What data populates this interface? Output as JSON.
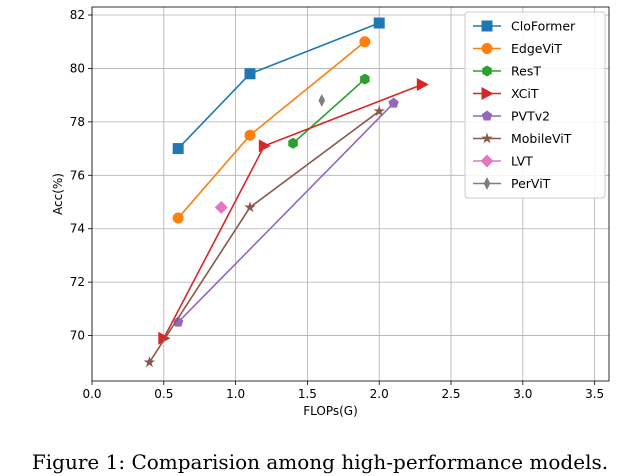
{
  "chart_data": {
    "type": "line",
    "xlabel": "FLOPs(G)",
    "ylabel": "Acc(%)",
    "xlim": [
      0,
      3.6
    ],
    "ylim": [
      68.3,
      82.3
    ],
    "xticks": [
      0.0,
      0.5,
      1.0,
      1.5,
      2.0,
      2.5,
      3.0,
      3.5
    ],
    "xtick_labels": [
      "0.0",
      "0.5",
      "1.0",
      "1.5",
      "2.0",
      "2.5",
      "3.0",
      "3.5"
    ],
    "yticks": [
      70,
      72,
      74,
      76,
      78,
      80,
      82
    ],
    "ytick_labels": [
      "70",
      "72",
      "74",
      "76",
      "78",
      "80",
      "82"
    ],
    "grid": true,
    "legend_position": "top-right",
    "series": [
      {
        "name": "CloFormer",
        "color": "#1f77b4",
        "marker": "square",
        "x": [
          0.6,
          1.1,
          2.0
        ],
        "y": [
          77.0,
          79.8,
          81.7
        ]
      },
      {
        "name": "EdgeViT",
        "color": "#ff7f0e",
        "marker": "circle",
        "x": [
          0.6,
          1.1,
          1.9
        ],
        "y": [
          74.4,
          77.5,
          81.0
        ]
      },
      {
        "name": "ResT",
        "color": "#2ca02c",
        "marker": "hexagon",
        "x": [
          1.4,
          1.9
        ],
        "y": [
          77.2,
          79.6
        ]
      },
      {
        "name": "XCiT",
        "color": "#d62728",
        "marker": "triangle-right",
        "x": [
          0.5,
          1.2,
          2.3
        ],
        "y": [
          69.9,
          77.1,
          79.4
        ]
      },
      {
        "name": "PVTv2",
        "color": "#9467bd",
        "marker": "pentagon",
        "x": [
          0.6,
          2.1
        ],
        "y": [
          70.5,
          78.7
        ]
      },
      {
        "name": "MobileViT",
        "color": "#8c564b",
        "marker": "star",
        "x": [
          0.4,
          1.1,
          2.0
        ],
        "y": [
          69.0,
          74.8,
          78.4
        ]
      },
      {
        "name": "LVT",
        "color": "#e377c2",
        "marker": "diamond",
        "x": [
          0.9
        ],
        "y": [
          74.8
        ]
      },
      {
        "name": "PerViT",
        "color": "#7f7f7f",
        "marker": "thin-diamond",
        "x": [
          1.6
        ],
        "y": [
          78.8
        ]
      }
    ]
  },
  "caption": "Figure 1: Comparision among high-performance models."
}
